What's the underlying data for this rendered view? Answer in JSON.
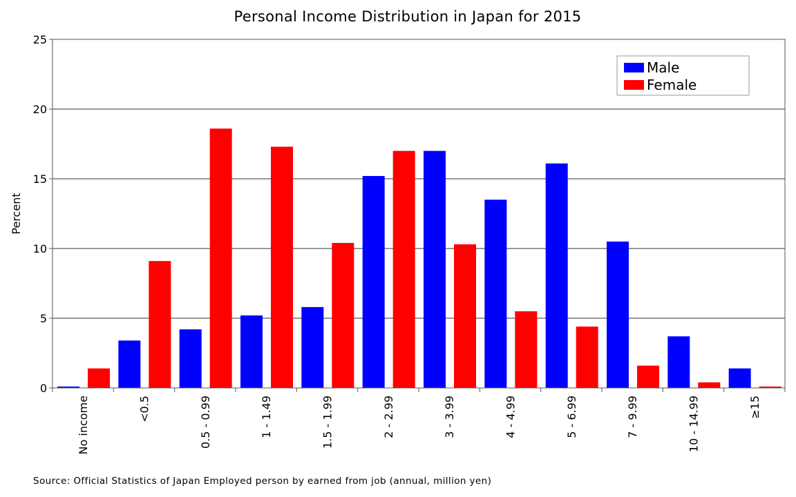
{
  "chart_data": {
    "type": "bar",
    "title": "Personal Income Distribution in Japan for 2015",
    "ylabel": "Percent",
    "xlabel": "",
    "ylim": [
      0,
      25
    ],
    "yticks": [
      0,
      5,
      10,
      15,
      20,
      25
    ],
    "grid": true,
    "legend_position": "top-right",
    "categories": [
      "No income",
      "<0.5",
      "0.5 - 0.99",
      "1 - 1.49",
      "1.5 - 1.99",
      "2 - 2.99",
      "3 - 3.99",
      "4 - 4.99",
      "5 - 6.99",
      "7 - 9.99",
      "10 - 14.99",
      "≥15"
    ],
    "series": [
      {
        "name": "Male",
        "color": "#0000ff",
        "values": [
          0.1,
          3.4,
          4.2,
          5.2,
          5.8,
          15.2,
          17.0,
          13.5,
          16.1,
          10.5,
          3.7,
          1.4
        ]
      },
      {
        "name": "Female",
        "color": "#ff0000",
        "values": [
          1.4,
          9.1,
          18.6,
          17.3,
          10.4,
          17.0,
          10.3,
          5.5,
          4.4,
          1.6,
          0.4,
          0.1
        ]
      }
    ],
    "source": "Source: Official Statistics of Japan Employed person by earned from job (annual, million yen)"
  }
}
